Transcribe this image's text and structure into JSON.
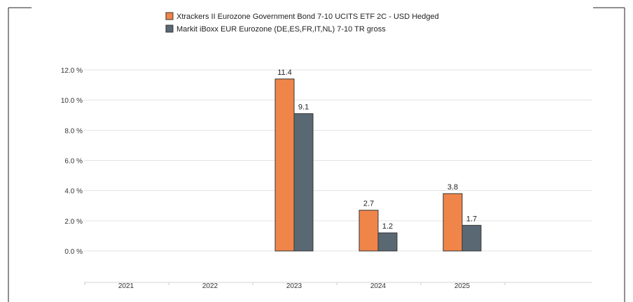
{
  "chart_data": {
    "type": "bar",
    "categories": [
      "2021",
      "2022",
      "2023",
      "2024",
      "2025"
    ],
    "series": [
      {
        "name": "Xtrackers II Eurozone Government Bond 7-10 UCITS ETF 2C - USD Hedged",
        "color": "#f0854a",
        "values": [
          null,
          null,
          11.4,
          2.7,
          3.8
        ],
        "labels": [
          "",
          "",
          "11.4",
          "2.7",
          "3.8"
        ]
      },
      {
        "name": "Markit iBoxx EUR Eurozone (DE,ES,FR,IT,NL) 7-10 TR gross",
        "color": "#5a6874",
        "values": [
          null,
          null,
          9.1,
          1.2,
          1.7
        ],
        "labels": [
          "",
          "",
          "9.1",
          "1.2",
          "1.7"
        ]
      }
    ],
    "y_ticks": [
      0,
      2,
      4,
      6,
      8,
      10,
      12
    ],
    "y_tick_labels": [
      "0.0 %",
      "2.0 %",
      "4.0 %",
      "6.0 %",
      "8.0 %",
      "10.0 %",
      "12.0 %"
    ],
    "ylim": [
      0,
      12
    ],
    "grid": true,
    "legend_position": "top"
  }
}
